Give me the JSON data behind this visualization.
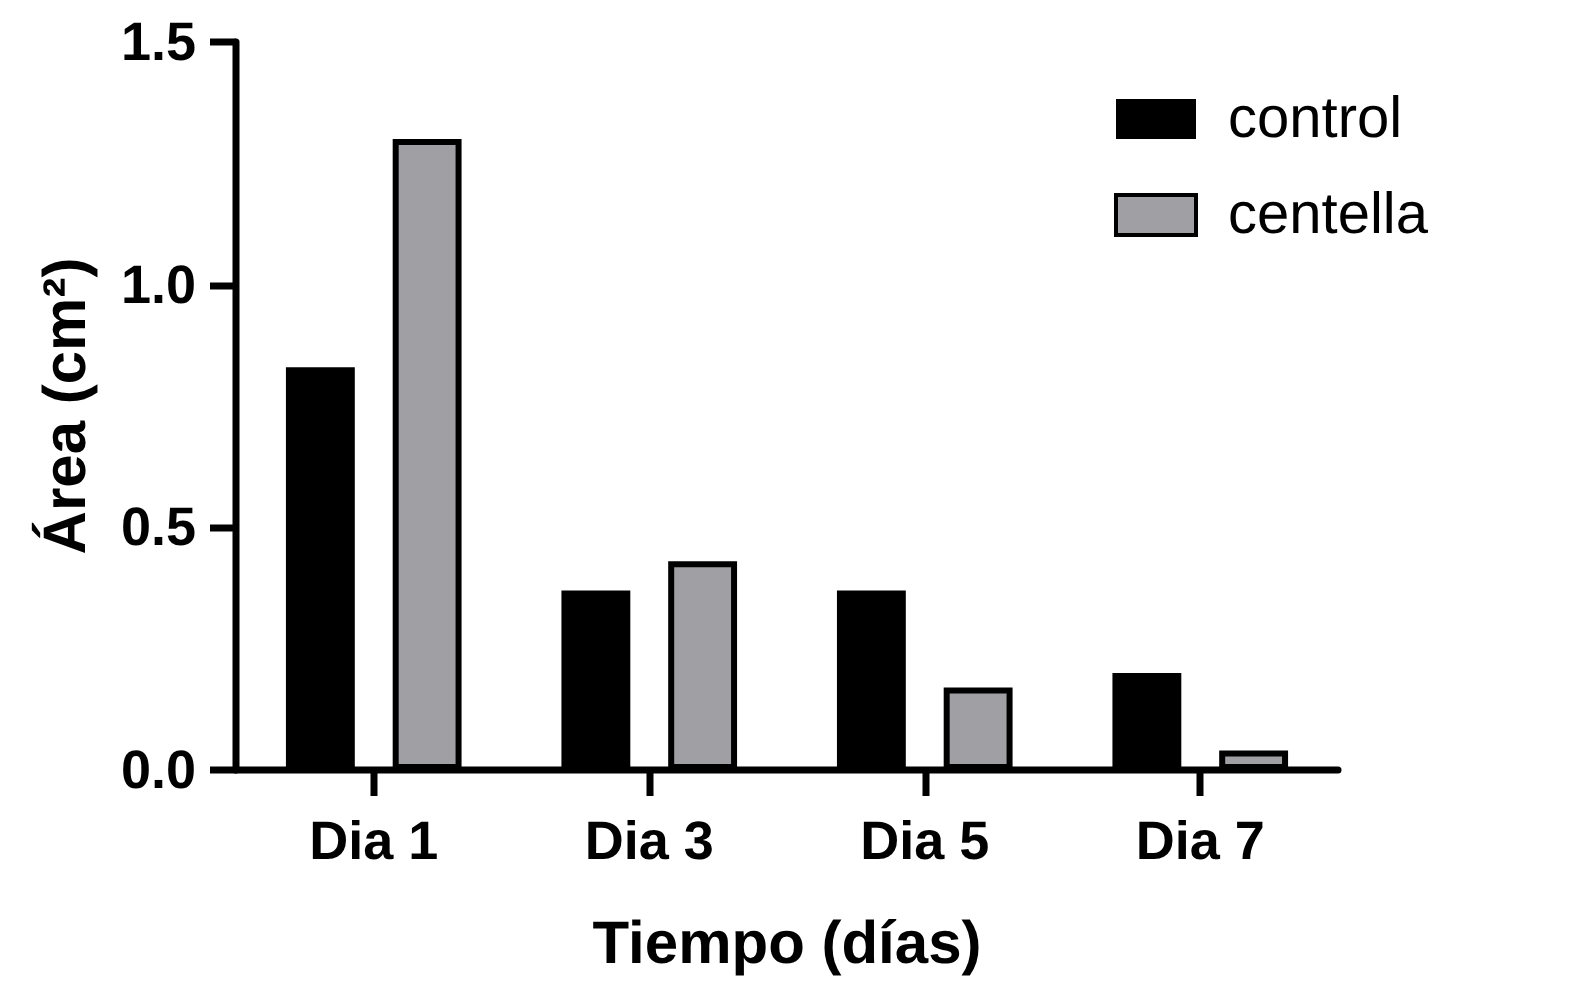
{
  "chart_data": {
    "type": "bar",
    "xlabel": "Tiempo (días)",
    "ylabel": "Área (cm²)",
    "categories": [
      "Dia 1",
      "Dia 3",
      "Dia 5",
      "Dia 7"
    ],
    "series": [
      {
        "name": "control",
        "color": "#000000",
        "values": [
          0.83,
          0.37,
          0.37,
          0.2
        ]
      },
      {
        "name": "centella",
        "color": "#a09fa4",
        "values": [
          1.3,
          0.43,
          0.17,
          0.04
        ]
      }
    ],
    "ylim": [
      0,
      1.5
    ],
    "yticks": [
      {
        "value": 0,
        "label": "0.0"
      },
      0.5,
      {
        "value": 1,
        "label": "1.0"
      },
      1.5
    ],
    "grid": false,
    "legend": "top right"
  }
}
